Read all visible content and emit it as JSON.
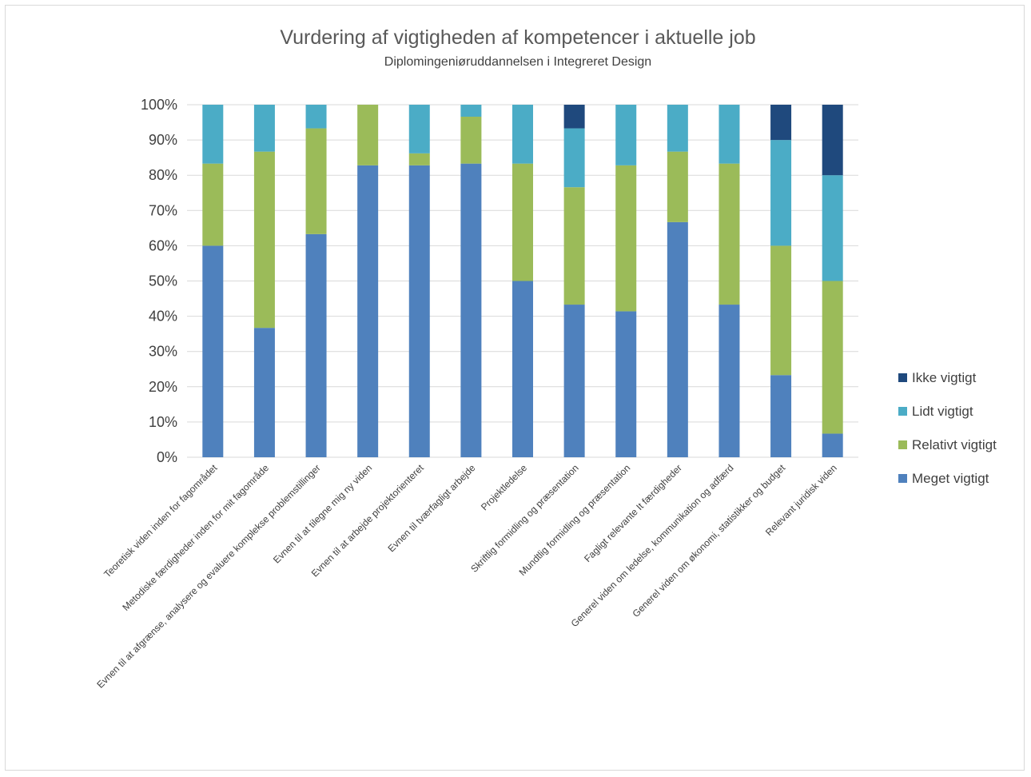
{
  "chart_data": {
    "type": "bar",
    "stacked": true,
    "title": "Vurdering af vigtigheden af kompetencer i aktuelle job",
    "subtitle": "Diplomingeniøruddannelsen i Integreret Design",
    "ylim": [
      0,
      100
    ],
    "yticks": [
      "0%",
      "10%",
      "20%",
      "30%",
      "40%",
      "50%",
      "60%",
      "70%",
      "80%",
      "90%",
      "100%"
    ],
    "grid": true,
    "legend_position": "right",
    "categories": [
      "Teoretisk viden inden for fagområdet",
      "Metodiske færdigheder inden for mit fagområde",
      "Evnen til at afgrænse, analysere og evaluere komplekse problemstillinger",
      "Evnen til at tilegne mig ny viden",
      "Evnen til at arbejde projektorienteret",
      "Evnen til tværfagligt arbejde",
      "Projektledelse",
      "Skriftlig formidling og præsentation",
      "Mundtlig formidling og præsentation",
      "Fagligt relevante It færdigheder",
      "Generel viden om ledelse, kommunikation og adfærd",
      "Generel viden om økonomi, statistikker og budget",
      "Relevant juridisk viden"
    ],
    "series": [
      {
        "name": "Meget vigtigt",
        "color": "#4f81bd",
        "values": [
          60,
          36.7,
          63.3,
          82.8,
          82.8,
          83.3,
          50,
          43.3,
          41.4,
          66.7,
          43.3,
          23.3,
          6.7
        ]
      },
      {
        "name": "Relativt vigtigt",
        "color": "#9bbb59",
        "values": [
          23.3,
          50,
          30,
          17.2,
          3.4,
          13.3,
          33.3,
          33.3,
          41.4,
          20,
          40,
          36.7,
          43.3
        ]
      },
      {
        "name": "Lidt vigtigt",
        "color": "#4bacc6",
        "values": [
          16.7,
          13.3,
          6.7,
          0,
          13.8,
          3.4,
          16.7,
          16.7,
          17.2,
          13.3,
          16.7,
          30,
          30
        ]
      },
      {
        "name": "Ikke vigtigt",
        "color": "#1f497d",
        "values": [
          0,
          0,
          0,
          0,
          0,
          0,
          0,
          6.7,
          0,
          0,
          0,
          10,
          20
        ]
      }
    ],
    "legend_order": [
      "Ikke vigtigt",
      "Lidt vigtigt",
      "Relativt vigtigt",
      "Meget vigtigt"
    ]
  }
}
